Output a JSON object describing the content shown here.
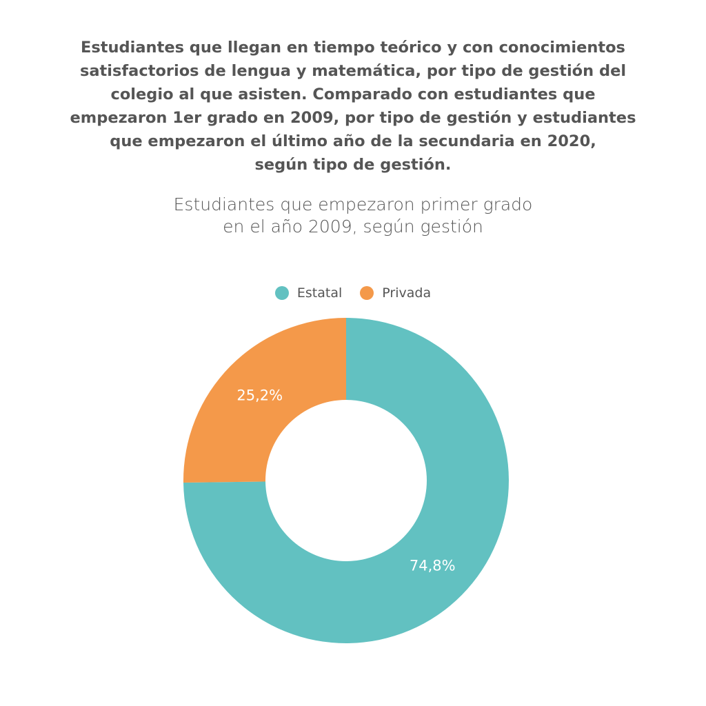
{
  "title_lines": [
    "Estudiantes que llegan en tiempo teórico y con conocimientos",
    "satisfactorios de lengua y matemática, por tipo de gestión del",
    "colegio al que asisten. Comparado con estudiantes que",
    "empezaron 1er grado en 2009, por tipo de gestión y estudiantes",
    "que empezaron el último año de la secundaria en 2020,",
    "según tipo de gestión."
  ],
  "chart_data": {
    "type": "pie",
    "donut": true,
    "title_lines": [
      "Estudiantes que empezaron primer grado",
      "en el año 2009, según gestión"
    ],
    "legend_position": "top",
    "series": [
      {
        "name": "Estatal",
        "value": 74.8,
        "label": "74,8%",
        "color": "#62C1C1"
      },
      {
        "name": "Privada",
        "value": 25.2,
        "label": "25,2%",
        "color": "#F4994A"
      }
    ]
  }
}
